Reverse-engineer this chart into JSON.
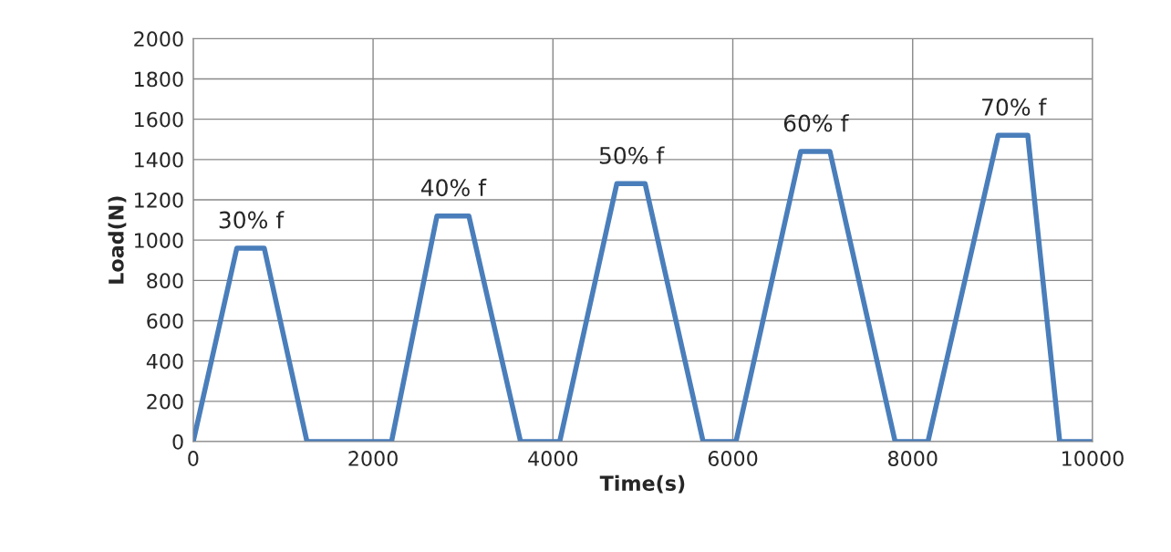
{
  "chart_data": {
    "type": "line",
    "xlabel": "Time(s)",
    "ylabel": "Load(N)",
    "x": [
      0,
      485,
      790,
      1265,
      2205,
      2710,
      3065,
      3640,
      4075,
      4710,
      5025,
      5670,
      6035,
      6755,
      7080,
      7805,
      8170,
      8950,
      9280,
      9635,
      10000
    ],
    "series": [
      {
        "color": "#4a7ebb",
        "values": [
          0,
          960,
          960,
          0,
          0,
          1120,
          1120,
          0,
          0,
          1280,
          1280,
          0,
          0,
          1440,
          1440,
          0,
          0,
          1520,
          1520,
          0,
          0
        ]
      }
    ],
    "xlim": [
      0,
      10000
    ],
    "xticks": [
      0,
      2000,
      4000,
      6000,
      8000,
      10000
    ],
    "ylim": [
      0,
      2000
    ],
    "yticks": [
      0,
      200,
      400,
      600,
      800,
      1000,
      1200,
      1400,
      1600,
      1800,
      2000
    ],
    "grid": true,
    "marker": "none",
    "line_style": "solid",
    "annotations": [
      {
        "text": "30% f",
        "x": 640,
        "y": 960
      },
      {
        "text": "40% f",
        "x": 2890,
        "y": 1120
      },
      {
        "text": "50% f",
        "x": 4870,
        "y": 1280
      },
      {
        "text": "60% f",
        "x": 6920,
        "y": 1440
      },
      {
        "text": "70% f",
        "x": 9120,
        "y": 1520
      }
    ]
  }
}
